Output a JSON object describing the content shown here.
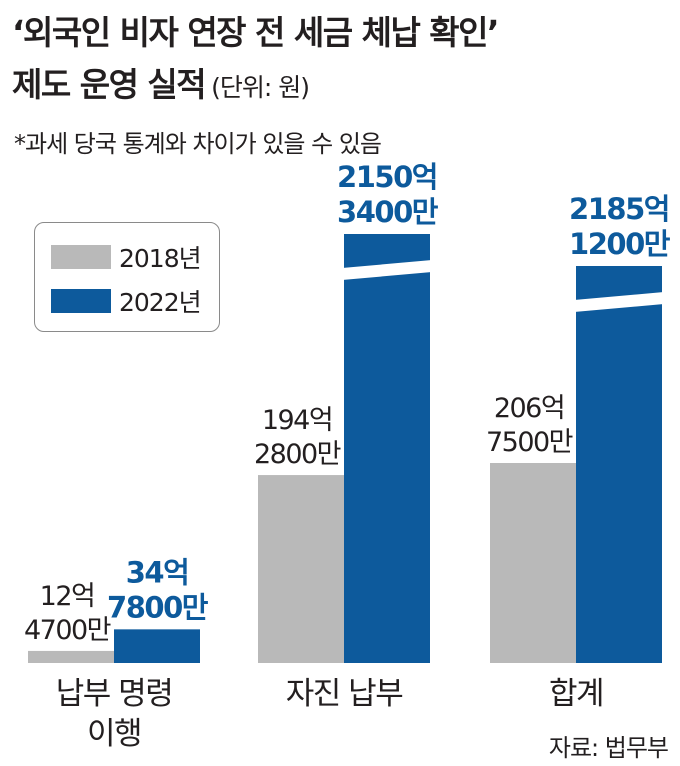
{
  "chart_data": {
    "type": "bar",
    "title_line1": "‘외국인 비자 연장 전 세금 체납 확인’",
    "title_line2": "제도 운영 실적",
    "unit_label": "(단위: 원)",
    "note": "*과세 당국 통계와 차이가 있을 수 있음",
    "source": "자료: 법무부",
    "legend_position": "top-left",
    "categories": [
      {
        "lines": [
          "납부 명령",
          "이행"
        ]
      },
      {
        "lines": [
          "자진 납부"
        ]
      },
      {
        "lines": [
          "합계"
        ]
      }
    ],
    "series": [
      {
        "name": "2018년",
        "color": "#b9b9b9",
        "values": [
          1247000000,
          19428000000,
          20675000000
        ],
        "labels": [
          [
            "12억",
            "4700만"
          ],
          [
            "194억",
            "2800만"
          ],
          [
            "206억",
            "7500만"
          ]
        ]
      },
      {
        "name": "2022년",
        "color": "#0d5a9c",
        "values": [
          3478000000,
          215034000000,
          218512000000
        ],
        "labels": [
          [
            "34억",
            "7800만"
          ],
          [
            "2150억",
            "3400만"
          ],
          [
            "2185억",
            "1200만"
          ]
        ]
      }
    ],
    "axis_break": true,
    "grid": false
  }
}
